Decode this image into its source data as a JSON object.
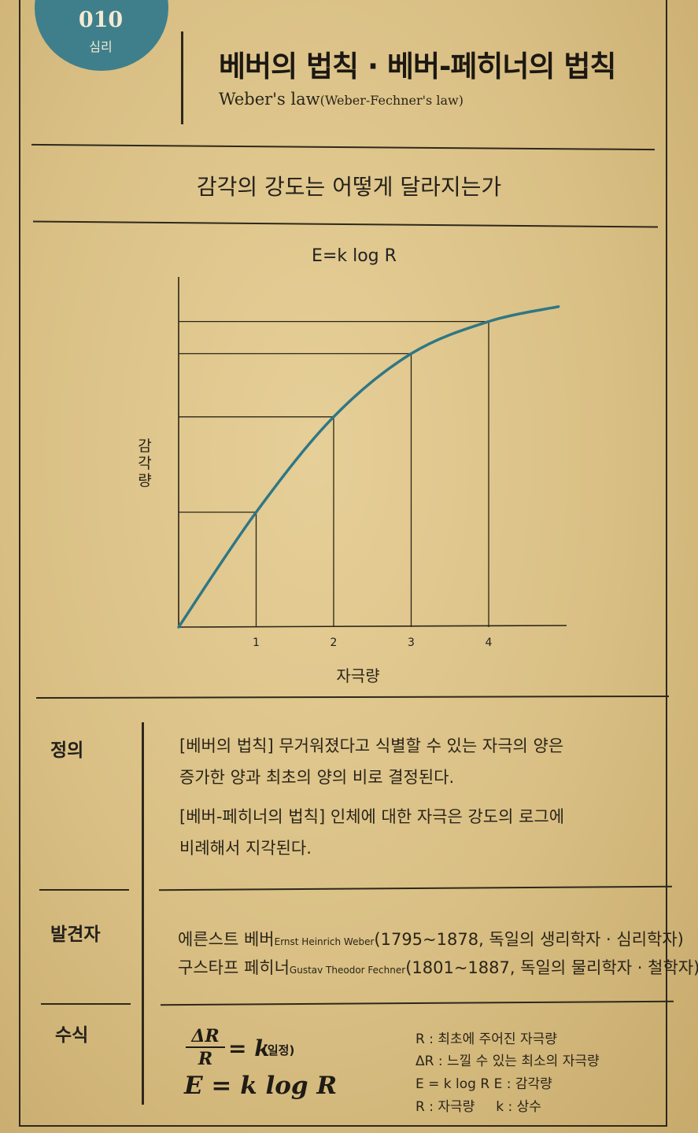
{
  "badge": {
    "number": "010",
    "category": "심리"
  },
  "title": {
    "korean": "베버의 법칙 · 베버-페히너의 법칙",
    "english_main": "Weber's law",
    "english_sub": "(Weber-Fechner's law)"
  },
  "subtitle": "감각의 강도는 어떻게 달라지는가",
  "chart_data": {
    "type": "line",
    "title": "E=k log R",
    "xlabel": "자극량",
    "ylabel": "감각량",
    "x_ticks": [
      "1",
      "2",
      "3",
      "4"
    ],
    "series": [
      {
        "x": [
          0,
          1,
          2,
          3,
          4,
          4.9
        ],
        "y": [
          0,
          1.0,
          1.83,
          2.38,
          2.66,
          2.79
        ]
      }
    ],
    "xlim": [
      0,
      5
    ],
    "ylim": [
      0,
      3
    ]
  },
  "definition": {
    "label": "정의",
    "lines": [
      "[베버의 법칙] 무거워졌다고 식별할 수 있는 자극의 양은",
      "증가한 양과 최초의 양의 비로 결정된다.",
      "[베버-페히너의 법칙] 인체에 대한 자극은 강도의 로그에",
      "비례해서 지각된다."
    ]
  },
  "discoverer": {
    "label": "발견자",
    "people": [
      {
        "name": "에른스트 베버",
        "original": "Ernst Heinrich Weber",
        "detail": "(1795~1878, 독일의 생리학자 · 심리학자)"
      },
      {
        "name": "구스타프 페히너",
        "original": "Gustav Theodor Fechner",
        "detail": "(1801~1887, 독일의 물리학자 · 철학자)"
      }
    ]
  },
  "formula": {
    "label": "수식",
    "frac_num": "ΔR",
    "frac_den": "R",
    "eq1_rest": "= k",
    "eq1_note": "(일정)",
    "eq2": "E = k log R",
    "legend": [
      "R : 최초에 주어진 자극량",
      "ΔR : 느낄 수 있는 최소의 자극량",
      "E = k log R   E : 감각량",
      "R : 자극량     k : 상수"
    ]
  }
}
